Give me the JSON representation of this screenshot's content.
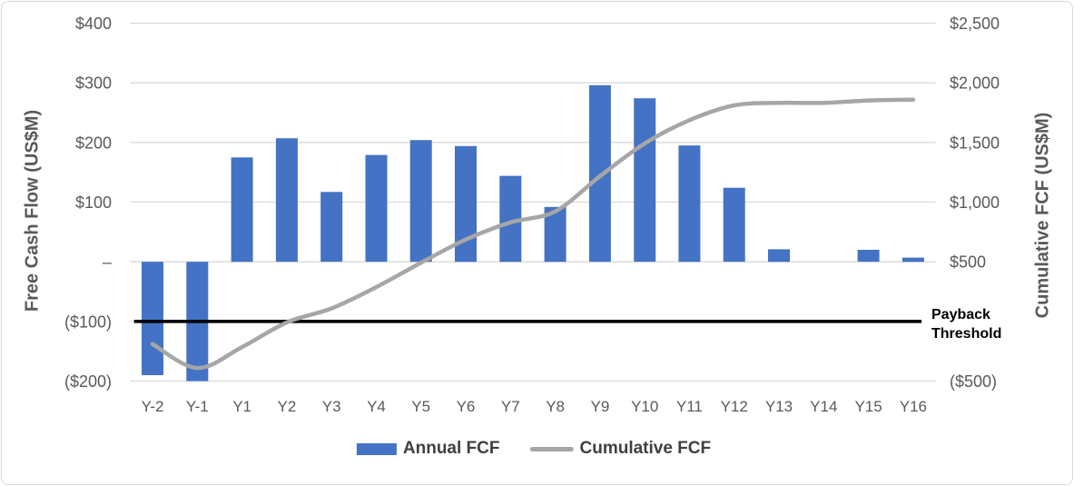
{
  "chart_data": {
    "type": "combo-bar-line",
    "title": "",
    "categories": [
      "Y-2",
      "Y-1",
      "Y1",
      "Y2",
      "Y3",
      "Y4",
      "Y5",
      "Y6",
      "Y7",
      "Y8",
      "Y9",
      "Y10",
      "Y11",
      "Y12",
      "Y13",
      "Y14",
      "Y15",
      "Y16"
    ],
    "series": [
      {
        "name": "Annual FCF",
        "type": "bar",
        "axis": "left",
        "values": [
          -190,
          -200,
          175,
          207,
          117,
          179,
          204,
          194,
          144,
          92,
          296,
          274,
          195,
          124,
          21,
          0,
          20,
          7
        ]
      },
      {
        "name": "Cumulative FCF",
        "type": "line",
        "axis": "right",
        "smooth": true,
        "values": [
          -190,
          -390,
          -215,
          -8,
          109,
          288,
          492,
          686,
          830,
          922,
          1218,
          1492,
          1687,
          1811,
          1832,
          1832,
          1852,
          1859
        ]
      }
    ],
    "left_axis": {
      "title": "Free Cash Flow (US$M)",
      "tick_labels": [
        "$400",
        "$300",
        "$200",
        "$100",
        "–",
        "($100)",
        "($200)"
      ],
      "tick_values": [
        400,
        300,
        200,
        100,
        0,
        -100,
        -200
      ],
      "range": [
        -200,
        400
      ]
    },
    "right_axis": {
      "title": "Cumulative FCF (US$M)",
      "tick_labels": [
        "$2,500",
        "$2,000",
        "$1,500",
        "$1,000",
        "$500",
        "($500)"
      ],
      "tick_values": [
        2500,
        2000,
        1500,
        1000,
        500,
        -500
      ],
      "range": [
        -500,
        2500
      ]
    },
    "annotation": {
      "label": "Payback Threshold",
      "axis": "right",
      "value": 0
    },
    "legend": {
      "position": "bottom",
      "entries": [
        "Annual FCF",
        "Cumulative FCF"
      ]
    },
    "grid": true
  },
  "colors": {
    "bar": "#4472C4",
    "line": "#A6A6A6",
    "threshold": "#000000",
    "gridline": "#D9D9D9",
    "axis_text": "#595959",
    "legend_text": "#404040",
    "annotation_text": "#000000",
    "background": "#FFFFFF",
    "border": "#D9D9D9"
  }
}
